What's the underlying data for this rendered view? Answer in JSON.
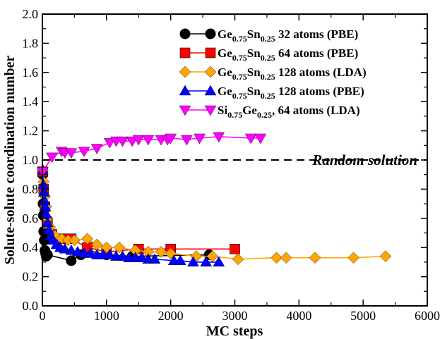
{
  "chart_data": {
    "type": "line",
    "title": "",
    "xlabel": "MC steps",
    "ylabel": "Solute-solute coordination number",
    "xlim": [
      0,
      6000
    ],
    "ylim": [
      0,
      2.0
    ],
    "xticks": [
      "0",
      "1000",
      "2000",
      "3000",
      "4000",
      "5000",
      "6000"
    ],
    "yticks": [
      "0.0",
      "0.2",
      "0.4",
      "0.6",
      "0.8",
      "1.0",
      "1.2",
      "1.4",
      "1.6",
      "1.8",
      "2.0"
    ],
    "xtick_values": [
      0,
      1000,
      2000,
      3000,
      4000,
      5000,
      6000
    ],
    "ytick_values": [
      0,
      0.2,
      0.4,
      0.6,
      0.8,
      1.0,
      1.2,
      1.4,
      1.6,
      1.8,
      2.0
    ],
    "legend_position": "top-right",
    "reference_line": {
      "y": 1.0,
      "label": "Random solution",
      "style": "dashed",
      "color": "#000000"
    },
    "series": [
      {
        "name": "Ge0.75Sn0.25 32 atoms (PBE)",
        "label_parts": [
          "Ge",
          "0.75",
          "Sn",
          "0.25",
          " 32 atoms (PBE)"
        ],
        "marker": "circle",
        "color": "#000000",
        "x": [
          5,
          10,
          15,
          20,
          30,
          40,
          50,
          60,
          80,
          450,
          600,
          700,
          1000,
          1400,
          2600
        ],
        "y": [
          0.9,
          0.7,
          0.62,
          0.51,
          0.45,
          0.38,
          0.36,
          0.34,
          0.35,
          0.31,
          0.35,
          0.38,
          0.35,
          0.34,
          0.35
        ]
      },
      {
        "name": "Ge0.75Sn0.25 64 atoms (PBE)",
        "label_parts": [
          "Ge",
          "0.75",
          "Sn",
          "0.25",
          " 64 atoms (PBE)"
        ],
        "marker": "square",
        "color": "#ff0000",
        "x": [
          5,
          20,
          40,
          80,
          150,
          300,
          450,
          700,
          1000,
          1500,
          2000,
          3000
        ],
        "y": [
          0.92,
          0.8,
          0.68,
          0.56,
          0.49,
          0.46,
          0.46,
          0.4,
          0.37,
          0.39,
          0.39,
          0.39
        ]
      },
      {
        "name": "Ge0.75Sn0.25 128 atoms (LDA)",
        "label_parts": [
          "Ge",
          "0.75",
          "Sn",
          "0.25",
          " 128 atoms (LDA)"
        ],
        "marker": "diamond",
        "color": "#ffa500",
        "x": [
          5,
          20,
          40,
          60,
          80,
          120,
          200,
          300,
          400,
          500,
          700,
          850,
          1000,
          1200,
          1450,
          1650,
          1850,
          2000,
          2400,
          2650,
          3050,
          3650,
          3800,
          4250,
          4850,
          5350
        ],
        "y": [
          0.93,
          0.85,
          0.75,
          0.68,
          0.6,
          0.54,
          0.48,
          0.46,
          0.45,
          0.45,
          0.46,
          0.42,
          0.4,
          0.4,
          0.38,
          0.37,
          0.37,
          0.36,
          0.34,
          0.34,
          0.32,
          0.33,
          0.33,
          0.33,
          0.33,
          0.34
        ]
      },
      {
        "name": "Ge0.75Sn0.25 128 atoms (PBE)",
        "label_parts": [
          "Ge",
          "0.75",
          "Sn",
          "0.25",
          " 128 atoms (PBE)"
        ],
        "marker": "triangle-up",
        "color": "#0000ff",
        "x": [
          5,
          15,
          25,
          35,
          45,
          60,
          80,
          100,
          130,
          170,
          220,
          280,
          350,
          450,
          550,
          650,
          750,
          850,
          950,
          1050,
          1150,
          1250,
          1350,
          1450,
          1550,
          1650,
          1750,
          2050,
          2150,
          2350,
          2550,
          2750
        ],
        "y": [
          0.93,
          0.83,
          0.78,
          0.72,
          0.68,
          0.63,
          0.57,
          0.52,
          0.48,
          0.45,
          0.42,
          0.4,
          0.39,
          0.38,
          0.37,
          0.36,
          0.36,
          0.35,
          0.35,
          0.35,
          0.34,
          0.34,
          0.33,
          0.33,
          0.33,
          0.32,
          0.32,
          0.31,
          0.31,
          0.3,
          0.3,
          0.3
        ]
      },
      {
        "name": "Si0.75Ge0.25, 64 atoms (LDA)",
        "label_parts": [
          "Si",
          "0.75",
          "Ge",
          "0.25",
          ", 64 atoms (LDA)"
        ],
        "marker": "triangle-down",
        "color": "#ff00ff",
        "x": [
          5,
          150,
          300,
          350,
          450,
          650,
          850,
          1050,
          1150,
          1250,
          1400,
          1500,
          1650,
          1850,
          1950,
          2000,
          2250,
          2450,
          2750,
          3250,
          3400
        ],
        "y": [
          0.92,
          1.02,
          1.06,
          1.05,
          1.05,
          1.06,
          1.08,
          1.12,
          1.13,
          1.13,
          1.13,
          1.14,
          1.14,
          1.14,
          1.14,
          1.15,
          1.14,
          1.15,
          1.16,
          1.15,
          1.15
        ]
      }
    ]
  }
}
